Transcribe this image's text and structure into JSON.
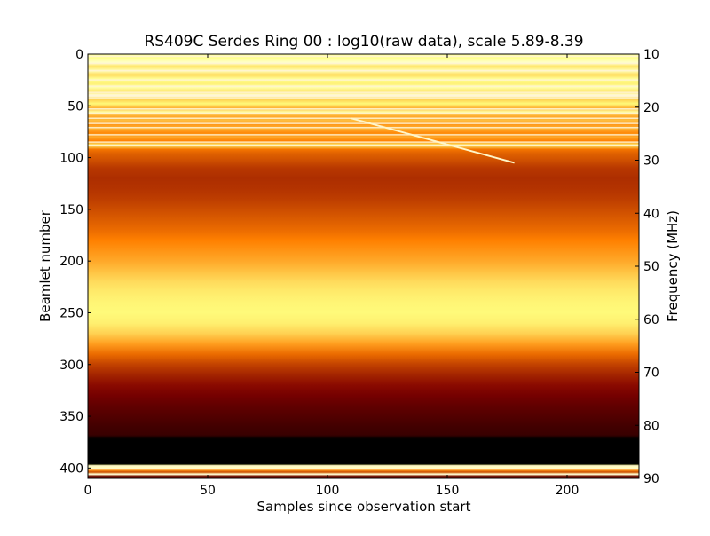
{
  "chart_data": {
    "type": "heatmap",
    "title": "RS409C Serdes Ring 00 : log10(raw data), scale 5.89-8.39",
    "xlabel": "Samples since observation start",
    "ylabel": "Beamlet number",
    "y2label": "Frequency (MHz)",
    "xlim": [
      0,
      230
    ],
    "ylim": [
      410,
      0
    ],
    "y2lim": [
      90,
      10
    ],
    "x_ticks": [
      0,
      50,
      100,
      150,
      200
    ],
    "y_ticks": [
      0,
      50,
      100,
      150,
      200,
      250,
      300,
      350,
      400
    ],
    "y2_ticks": [
      10,
      20,
      30,
      40,
      50,
      60,
      70,
      80,
      90
    ],
    "colormap": "afmhot",
    "colors": {
      "low": "#000000",
      "mid": "#c84000",
      "high": "#ffffff"
    },
    "scale": [
      5.89,
      8.39
    ],
    "beamlet_profile": [
      [
        0,
        0.82
      ],
      [
        4,
        0.78
      ],
      [
        8,
        0.9
      ],
      [
        12,
        0.7
      ],
      [
        16,
        0.86
      ],
      [
        20,
        0.68
      ],
      [
        24,
        0.8
      ],
      [
        28,
        0.72
      ],
      [
        32,
        0.84
      ],
      [
        36,
        0.7
      ],
      [
        40,
        0.95
      ],
      [
        44,
        0.66
      ],
      [
        48,
        0.74
      ],
      [
        52,
        0.6
      ],
      [
        56,
        0.82
      ],
      [
        60,
        0.58
      ],
      [
        64,
        0.62
      ],
      [
        68,
        0.55
      ],
      [
        72,
        0.6
      ],
      [
        76,
        0.52
      ],
      [
        80,
        0.58
      ],
      [
        84,
        0.5
      ],
      [
        88,
        0.72
      ],
      [
        92,
        0.48
      ],
      [
        96,
        0.44
      ],
      [
        100,
        0.42
      ],
      [
        110,
        0.36
      ],
      [
        120,
        0.34
      ],
      [
        130,
        0.35
      ],
      [
        140,
        0.37
      ],
      [
        150,
        0.4
      ],
      [
        160,
        0.43
      ],
      [
        170,
        0.46
      ],
      [
        180,
        0.5
      ],
      [
        190,
        0.54
      ],
      [
        200,
        0.58
      ],
      [
        210,
        0.63
      ],
      [
        220,
        0.68
      ],
      [
        230,
        0.71
      ],
      [
        240,
        0.73
      ],
      [
        250,
        0.74
      ],
      [
        260,
        0.72
      ],
      [
        270,
        0.66
      ],
      [
        280,
        0.56
      ],
      [
        290,
        0.46
      ],
      [
        300,
        0.38
      ],
      [
        310,
        0.32
      ],
      [
        320,
        0.27
      ],
      [
        330,
        0.23
      ],
      [
        340,
        0.19
      ],
      [
        350,
        0.16
      ],
      [
        360,
        0.13
      ],
      [
        368,
        0.11
      ],
      [
        372,
        0.0
      ],
      [
        396,
        0.0
      ],
      [
        398,
        0.78
      ],
      [
        400,
        0.92
      ],
      [
        402,
        0.55
      ],
      [
        404,
        0.4
      ],
      [
        406,
        0.85
      ],
      [
        408,
        0.2
      ],
      [
        410,
        0.3
      ]
    ],
    "bright_lines": [
      2,
      9,
      16,
      25,
      31,
      37,
      40,
      43,
      53,
      57,
      62,
      67,
      71,
      78,
      85,
      88,
      398,
      401,
      406
    ],
    "rfi_track": {
      "x": [
        110,
        178
      ],
      "y": [
        62,
        105
      ]
    }
  }
}
